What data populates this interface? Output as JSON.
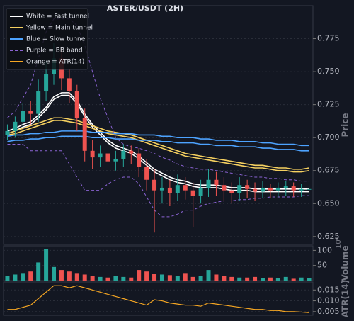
{
  "chart_data": [
    {
      "type": "candlestick",
      "title": "ASTER/USDT (2H)",
      "ylabel": "Price",
      "grid": true,
      "legend": "upper left",
      "open": [
        0.702,
        0.705,
        0.712,
        0.72,
        0.718,
        0.735,
        0.748,
        0.76,
        0.745,
        0.735,
        0.715,
        0.69,
        0.685,
        0.688,
        0.682,
        0.684,
        0.69,
        0.688,
        0.678,
        0.668,
        0.66,
        0.662,
        0.658,
        0.664,
        0.66,
        0.656,
        0.662,
        0.668,
        0.664,
        0.66,
        0.658,
        0.664,
        0.661,
        0.659,
        0.662,
        0.66,
        0.662,
        0.663,
        0.66,
        0.661
      ],
      "high": [
        0.71,
        0.716,
        0.726,
        0.728,
        0.744,
        0.758,
        0.772,
        0.768,
        0.752,
        0.74,
        0.722,
        0.698,
        0.694,
        0.692,
        0.69,
        0.695,
        0.694,
        0.692,
        0.684,
        0.676,
        0.67,
        0.668,
        0.672,
        0.67,
        0.666,
        0.668,
        0.676,
        0.674,
        0.67,
        0.666,
        0.67,
        0.668,
        0.666,
        0.667,
        0.665,
        0.666,
        0.667,
        0.666,
        0.665,
        0.664
      ],
      "low": [
        0.698,
        0.7,
        0.708,
        0.71,
        0.712,
        0.728,
        0.74,
        0.736,
        0.726,
        0.705,
        0.682,
        0.676,
        0.678,
        0.676,
        0.675,
        0.678,
        0.68,
        0.67,
        0.66,
        0.628,
        0.65,
        0.648,
        0.652,
        0.653,
        0.632,
        0.65,
        0.655,
        0.656,
        0.652,
        0.65,
        0.652,
        0.654,
        0.652,
        0.654,
        0.654,
        0.655,
        0.656,
        0.655,
        0.655,
        0.656
      ],
      "close": [
        0.705,
        0.712,
        0.72,
        0.718,
        0.735,
        0.748,
        0.76,
        0.745,
        0.735,
        0.715,
        0.69,
        0.685,
        0.688,
        0.682,
        0.684,
        0.69,
        0.688,
        0.678,
        0.668,
        0.66,
        0.662,
        0.658,
        0.664,
        0.66,
        0.656,
        0.662,
        0.668,
        0.664,
        0.66,
        0.658,
        0.664,
        0.661,
        0.659,
        0.662,
        0.66,
        0.662,
        0.663,
        0.66,
        0.661,
        0.661
      ],
      "bands": [
        {
          "name": "White = Fast tunnel",
          "color": "#ffffff",
          "dashed": false,
          "lines": [
            [
              0.705,
              0.707,
              0.71,
              0.712,
              0.717,
              0.723,
              0.731,
              0.734,
              0.734,
              0.728,
              0.718,
              0.71,
              0.704,
              0.698,
              0.694,
              0.692,
              0.69,
              0.686,
              0.681,
              0.676,
              0.673,
              0.67,
              0.668,
              0.667,
              0.665,
              0.664,
              0.664,
              0.664,
              0.663,
              0.662,
              0.662,
              0.662,
              0.661,
              0.661,
              0.661,
              0.661,
              0.661,
              0.661,
              0.661,
              0.661
            ],
            [
              0.703,
              0.705,
              0.708,
              0.71,
              0.715,
              0.721,
              0.729,
              0.732,
              0.732,
              0.726,
              0.716,
              0.708,
              0.702,
              0.696,
              0.692,
              0.69,
              0.688,
              0.684,
              0.679,
              0.674,
              0.671,
              0.668,
              0.666,
              0.665,
              0.663,
              0.662,
              0.662,
              0.662,
              0.661,
              0.66,
              0.66,
              0.66,
              0.659,
              0.659,
              0.659,
              0.659,
              0.659,
              0.659,
              0.659,
              0.659
            ]
          ]
        },
        {
          "name": "Yellow = Main tunnel",
          "color": "#f5d060",
          "dashed": false,
          "lines": [
            [
              0.703,
              0.705,
              0.707,
              0.709,
              0.711,
              0.713,
              0.715,
              0.715,
              0.714,
              0.713,
              0.711,
              0.709,
              0.707,
              0.705,
              0.704,
              0.703,
              0.702,
              0.7,
              0.698,
              0.696,
              0.694,
              0.692,
              0.69,
              0.688,
              0.687,
              0.686,
              0.685,
              0.684,
              0.683,
              0.682,
              0.681,
              0.68,
              0.679,
              0.679,
              0.678,
              0.677,
              0.677,
              0.676,
              0.676,
              0.677
            ],
            [
              0.702,
              0.703,
              0.705,
              0.707,
              0.709,
              0.711,
              0.713,
              0.713,
              0.712,
              0.711,
              0.709,
              0.707,
              0.705,
              0.703,
              0.702,
              0.701,
              0.7,
              0.698,
              0.696,
              0.694,
              0.692,
              0.69,
              0.688,
              0.686,
              0.685,
              0.684,
              0.683,
              0.682,
              0.681,
              0.68,
              0.679,
              0.678,
              0.677,
              0.677,
              0.676,
              0.675,
              0.675,
              0.674,
              0.674,
              0.675
            ]
          ]
        },
        {
          "name": "Blue = Slow tunnel",
          "color": "#4da3ff",
          "dashed": false,
          "lines": [
            [
              0.701,
              0.702,
              0.702,
              0.703,
              0.703,
              0.704,
              0.704,
              0.705,
              0.705,
              0.705,
              0.705,
              0.704,
              0.704,
              0.704,
              0.703,
              0.703,
              0.703,
              0.702,
              0.702,
              0.702,
              0.701,
              0.701,
              0.7,
              0.7,
              0.7,
              0.699,
              0.699,
              0.698,
              0.698,
              0.698,
              0.697,
              0.697,
              0.697,
              0.696,
              0.696,
              0.695,
              0.695,
              0.695,
              0.694,
              0.694
            ],
            [
              0.697,
              0.698,
              0.698,
              0.699,
              0.699,
              0.7,
              0.7,
              0.701,
              0.701,
              0.701,
              0.701,
              0.7,
              0.7,
              0.7,
              0.699,
              0.699,
              0.699,
              0.698,
              0.698,
              0.698,
              0.697,
              0.697,
              0.696,
              0.696,
              0.696,
              0.695,
              0.695,
              0.694,
              0.694,
              0.694,
              0.693,
              0.693,
              0.693,
              0.692,
              0.692,
              0.691,
              0.691,
              0.691,
              0.69,
              0.69
            ]
          ]
        },
        {
          "name": "Purple = BB band",
          "color": "#8a63d2",
          "dashed": true,
          "lines": [
            [
              0.715,
              0.72,
              0.73,
              0.74,
              0.76,
              0.78,
              0.79,
              0.79,
              0.79,
              0.785,
              0.77,
              0.75,
              0.73,
              0.715,
              0.7,
              0.695,
              0.693,
              0.692,
              0.69,
              0.688,
              0.685,
              0.683,
              0.68,
              0.678,
              0.677,
              0.676,
              0.676,
              0.675,
              0.674,
              0.673,
              0.672,
              0.671,
              0.67,
              0.67,
              0.669,
              0.669,
              0.668,
              0.668,
              0.667,
              0.667
            ],
            [
              0.695,
              0.695,
              0.695,
              0.69,
              0.69,
              0.69,
              0.69,
              0.69,
              0.68,
              0.67,
              0.66,
              0.66,
              0.66,
              0.665,
              0.668,
              0.67,
              0.67,
              0.665,
              0.655,
              0.645,
              0.64,
              0.64,
              0.642,
              0.645,
              0.645,
              0.648,
              0.65,
              0.651,
              0.652,
              0.652,
              0.653,
              0.653,
              0.654,
              0.654,
              0.655,
              0.655,
              0.655,
              0.655,
              0.656,
              0.656
            ]
          ]
        }
      ],
      "up_color": "#26a69a",
      "down_color": "#ef5350",
      "ylim": [
        0.619,
        0.8
      ],
      "yticks": [
        0.625,
        {
          "value": 0.65,
          "label": "0.650"
        },
        0.675,
        {
          "value": 0.7,
          "label": "0.700"
        },
        0.725,
        {
          "value": 0.75,
          "label": "0.750"
        },
        0.775
      ]
    },
    {
      "type": "bar",
      "ylabel": "Volume",
      "offset_label": "10⁶",
      "grid": true,
      "values": [
        15,
        20,
        25,
        30,
        60,
        105,
        45,
        35,
        30,
        25,
        20,
        15,
        12,
        10,
        15,
        12,
        10,
        35,
        30,
        22,
        20,
        18,
        15,
        25,
        12,
        15,
        35,
        20,
        15,
        12,
        10,
        10,
        12,
        8,
        10,
        8,
        12,
        6,
        10,
        8
      ],
      "ylim": [
        0,
        115
      ],
      "yticks": [
        50,
        100
      ]
    },
    {
      "type": "line",
      "ylabel": "ATR(14)",
      "grid": true,
      "series": [
        {
          "name": "Orange = ATR(14)",
          "color": "#f5a623",
          "values": [
            0.006,
            0.006,
            0.007,
            0.008,
            0.011,
            0.014,
            0.017,
            0.017,
            0.016,
            0.017,
            0.016,
            0.015,
            0.014,
            0.013,
            0.012,
            0.011,
            0.01,
            0.009,
            0.008,
            0.0105,
            0.01,
            0.009,
            0.0085,
            0.008,
            0.008,
            0.0075,
            0.009,
            0.0085,
            0.008,
            0.0075,
            0.007,
            0.0065,
            0.006,
            0.006,
            0.0055,
            0.0055,
            0.005,
            0.005,
            0.0048,
            0.0045
          ]
        }
      ],
      "ylim": [
        0.0033,
        0.0187
      ],
      "yticks": [
        0.005,
        {
          "value": 0.01,
          "label": "0.010"
        },
        0.015
      ]
    }
  ]
}
